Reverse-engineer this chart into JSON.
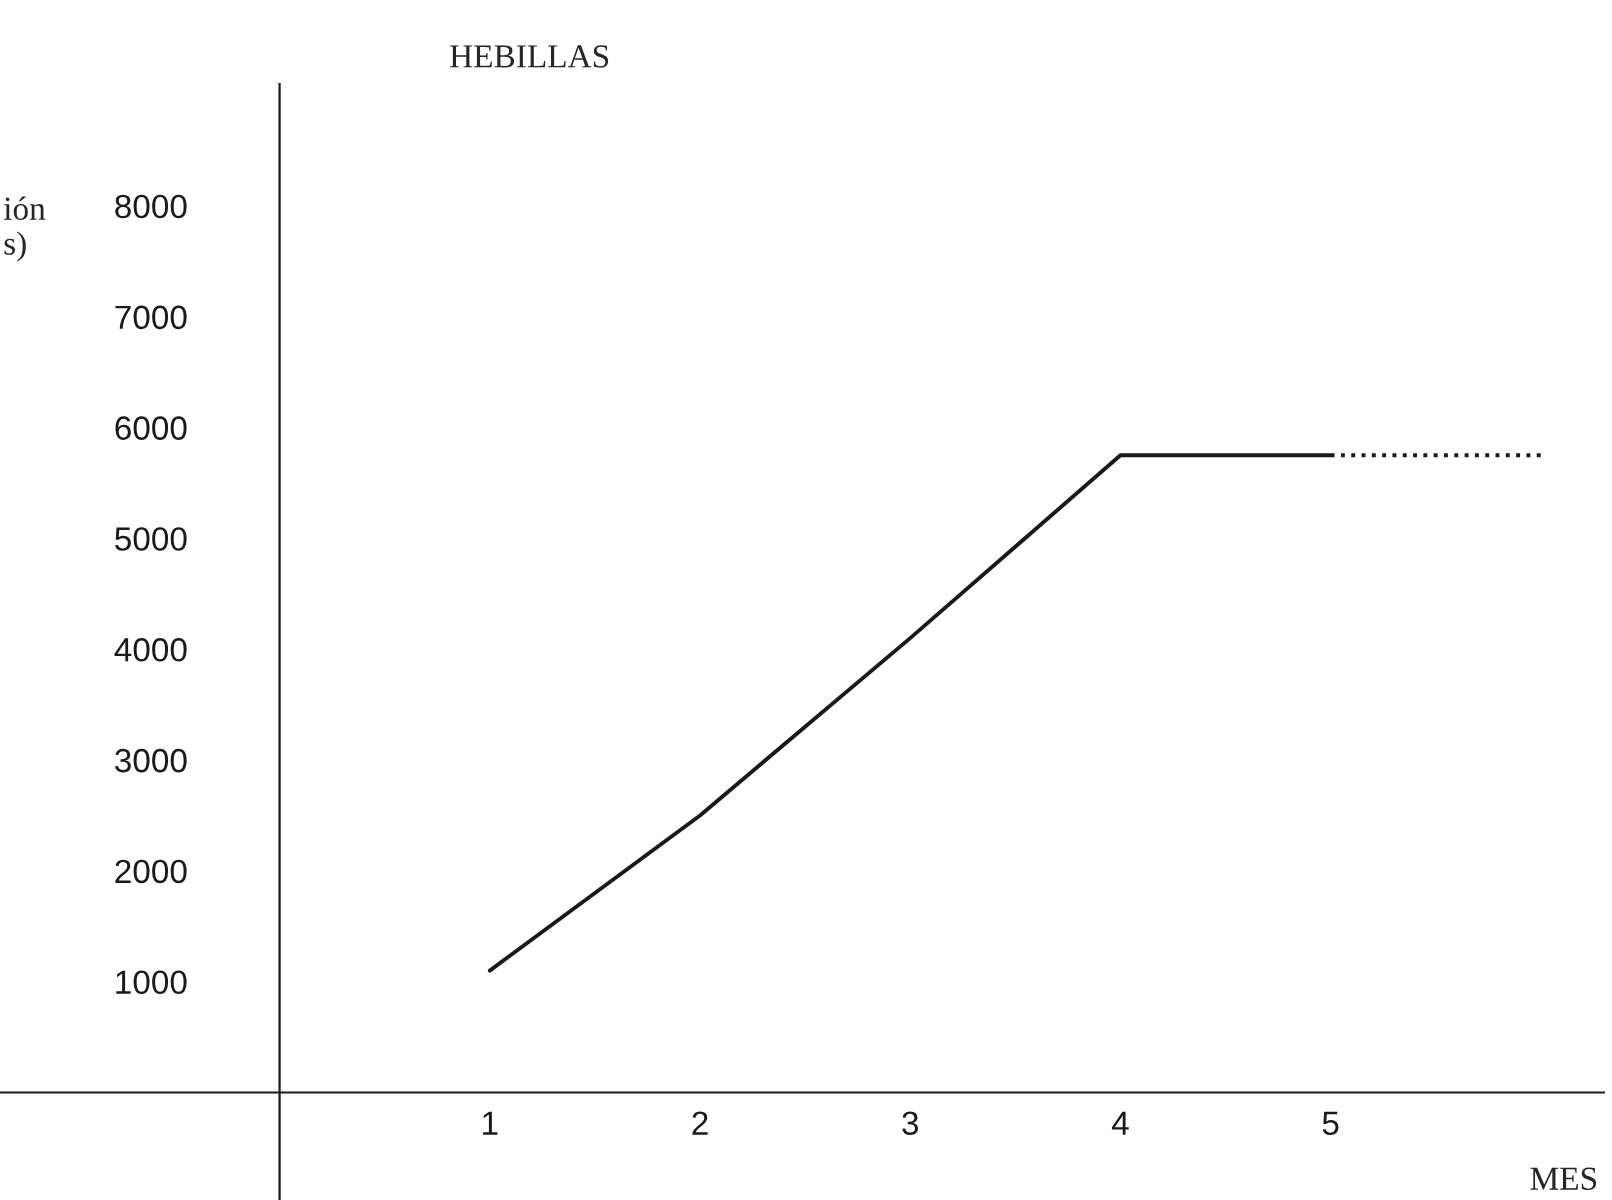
{
  "chart_data": {
    "type": "line",
    "title": "HEBILLAS",
    "xlabel": "MES",
    "ylabel": "ión\ns)",
    "series": [
      {
        "color": "#1a1a1a",
        "x": [
          1,
          2,
          3,
          4,
          5
        ],
        "values": [
          1100,
          2500,
          4100,
          5750,
          5750
        ],
        "line_style": "solid"
      },
      {
        "color": "#1a1a1a",
        "x": [
          5,
          6
        ],
        "values": [
          5750,
          5750
        ],
        "line_style": "dotted"
      }
    ],
    "xlim": [
      -1.33,
      6.3
    ],
    "ylim": [
      -970,
      9100
    ],
    "xticks": [
      1,
      2,
      3,
      4,
      5
    ],
    "yticks": [
      1000,
      2000,
      3000,
      4000,
      5000,
      6000,
      7000,
      8000
    ],
    "grid": false,
    "legend": false,
    "marker": "none"
  }
}
